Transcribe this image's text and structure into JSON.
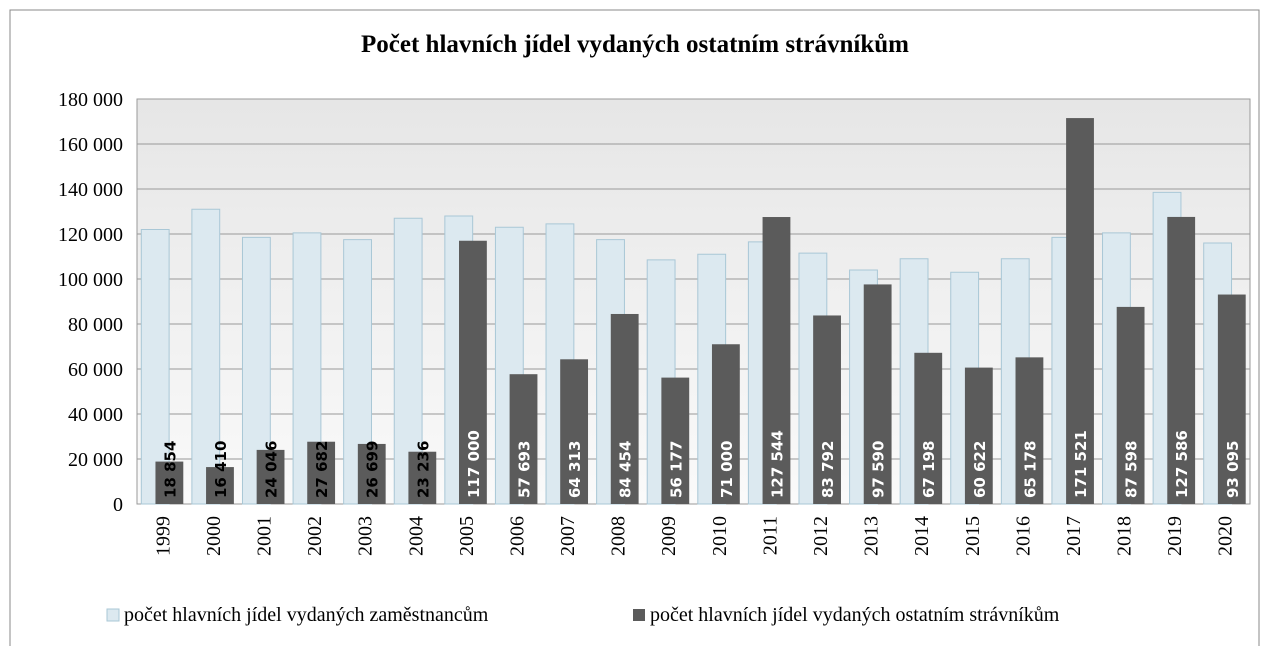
{
  "chart_data": {
    "type": "bar",
    "title": "Počet hlavních jídel vydaných ostatním strávníkům",
    "categories": [
      "1999",
      "2000",
      "2001",
      "2002",
      "2003",
      "2004",
      "2005",
      "2006",
      "2007",
      "2008",
      "2009",
      "2010",
      "2011",
      "2012",
      "2013",
      "2014",
      "2015",
      "2016",
      "2017",
      "2018",
      "2019",
      "2020"
    ],
    "series": [
      {
        "name": "počet hlavních jídel vydaných zaměstnancům",
        "color": "#dce9f0",
        "values": [
          122000,
          131000,
          118500,
          120500,
          117500,
          127000,
          128000,
          123000,
          124500,
          117500,
          108500,
          111000,
          116500,
          111500,
          104000,
          109000,
          103000,
          109000,
          118500,
          120500,
          138500,
          116000
        ]
      },
      {
        "name": "počet hlavních jídel vydaných ostatním strávníkům",
        "color": "#5b5b5b",
        "values": [
          18854,
          16410,
          24046,
          27682,
          26699,
          23236,
          117000,
          57693,
          64313,
          84454,
          56177,
          71000,
          127544,
          83792,
          97590,
          67198,
          60622,
          65178,
          171521,
          87598,
          127586,
          93095
        ],
        "value_labels": [
          "18 854",
          "16 410",
          "24 046",
          "27 682",
          "26 699",
          "23 236",
          "117 000",
          "57 693",
          "64 313",
          "84 454",
          "56 177",
          "71 000",
          "127 544",
          "83 792",
          "97 590",
          "67 198",
          "60 622",
          "65 178",
          "171 521",
          "87 598",
          "127 586",
          "93 095"
        ]
      }
    ],
    "ylim": [
      0,
      180000
    ],
    "yticks": [
      0,
      {
        "value": 20000,
        "label": "20 000"
      },
      {
        "value": 40000,
        "label": "40 000"
      },
      {
        "value": 60000,
        "label": "60 000"
      },
      {
        "value": 80000,
        "label": "80 000"
      },
      {
        "value": 100000,
        "label": "100 000"
      },
      {
        "value": 120000,
        "label": "120 000"
      },
      {
        "value": 140000,
        "label": "140 000"
      },
      {
        "value": 160000,
        "label": "160 000"
      },
      {
        "value": 180000,
        "label": "180 000"
      }
    ],
    "grid": true,
    "legend": "bottom"
  }
}
